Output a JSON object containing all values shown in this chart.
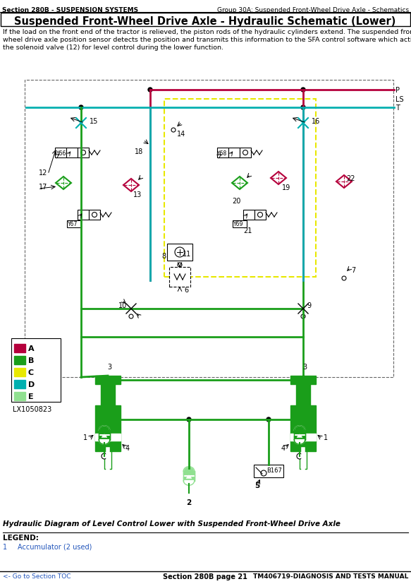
{
  "title_top_left": "Section 280B - SUSPENSION SYSTEMS",
  "title_top_right": "Group 30A: Suspended Front-Wheel Drive Axle - Schematics",
  "main_title": "Suspended Front-Wheel Drive Axle - Hydraulic Schematic (Lower)",
  "desc_lines": [
    "If the load on the front end of the tractor is relieved, the piston rods of the hydraulic cylinders extend. The suspended front-",
    "wheel drive axle position sensor detects the position and transmits this information to the SFA control software which activates",
    "the solenoid valve (12) for level control during the lower function."
  ],
  "legend_title": "LEGEND:",
  "legend_item_num": "1",
  "legend_item_desc": "Accumulator (2 used)",
  "bottom_left": "<- Go to Section TOC",
  "bottom_center": "Section 280B page 21",
  "bottom_right": "TM406719-DIAGNOSIS AND TESTS MANUAL",
  "diagram_caption": "Hydraulic Diagram of Level Control Lower with Suspended Front-Wheel Drive Axle",
  "lx_code": "LX1050823",
  "bg_color": "#ffffff",
  "RED": "#b5003c",
  "GREEN": "#1a9e1a",
  "YELLOW": "#e8e800",
  "TEAL": "#00b0b0",
  "LGREEN": "#90e090",
  "BLACK": "#000000",
  "GRAY": "#666666",
  "legend_colors": [
    "#b5003c",
    "#1a9e1a",
    "#e8e800",
    "#00b0b0",
    "#90e090"
  ],
  "legend_labels": [
    "A",
    "B",
    "C",
    "D",
    "E"
  ]
}
